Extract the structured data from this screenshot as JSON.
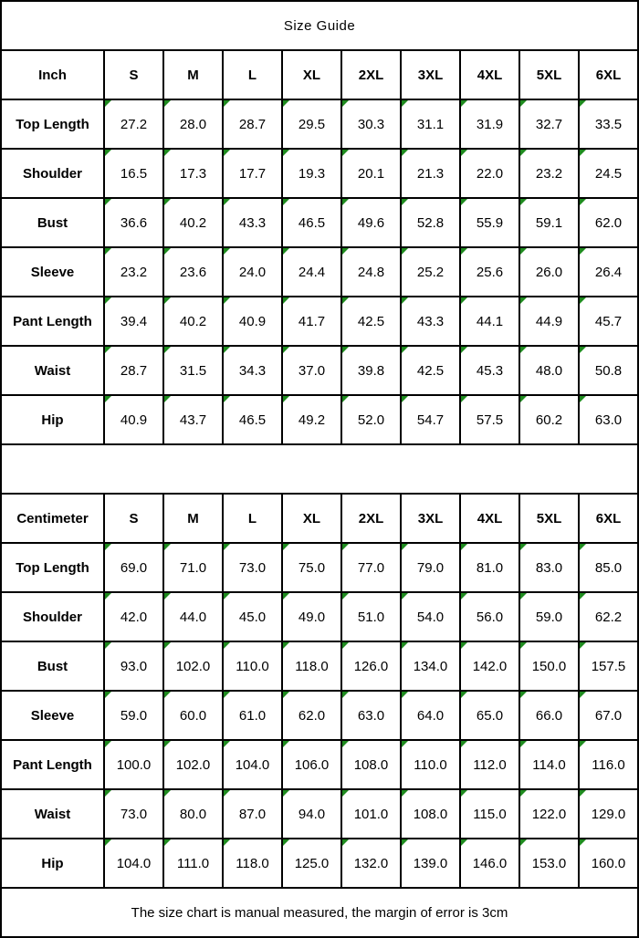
{
  "title": "Size Guide",
  "footer_note": "The size chart is manual measured, the margin of error is 3cm",
  "colors": {
    "border": "#000000",
    "background": "#ffffff",
    "text": "#000000",
    "cell_marker_green": "#1f8b1f"
  },
  "size_columns": [
    "S",
    "M",
    "L",
    "XL",
    "2XL",
    "3XL",
    "4XL",
    "5XL",
    "6XL"
  ],
  "tables": [
    {
      "unit": "Inch",
      "rows": [
        {
          "label": "Top Length",
          "values": [
            "27.2",
            "28.0",
            "28.7",
            "29.5",
            "30.3",
            "31.1",
            "31.9",
            "32.7",
            "33.5"
          ]
        },
        {
          "label": "Shoulder",
          "values": [
            "16.5",
            "17.3",
            "17.7",
            "19.3",
            "20.1",
            "21.3",
            "22.0",
            "23.2",
            "24.5"
          ]
        },
        {
          "label": "Bust",
          "values": [
            "36.6",
            "40.2",
            "43.3",
            "46.5",
            "49.6",
            "52.8",
            "55.9",
            "59.1",
            "62.0"
          ]
        },
        {
          "label": "Sleeve",
          "values": [
            "23.2",
            "23.6",
            "24.0",
            "24.4",
            "24.8",
            "25.2",
            "25.6",
            "26.0",
            "26.4"
          ]
        },
        {
          "label": "Pant Length",
          "values": [
            "39.4",
            "40.2",
            "40.9",
            "41.7",
            "42.5",
            "43.3",
            "44.1",
            "44.9",
            "45.7"
          ]
        },
        {
          "label": "Waist",
          "values": [
            "28.7",
            "31.5",
            "34.3",
            "37.0",
            "39.8",
            "42.5",
            "45.3",
            "48.0",
            "50.8"
          ]
        },
        {
          "label": "Hip",
          "values": [
            "40.9",
            "43.7",
            "46.5",
            "49.2",
            "52.0",
            "54.7",
            "57.5",
            "60.2",
            "63.0"
          ]
        }
      ]
    },
    {
      "unit": "Centimeter",
      "rows": [
        {
          "label": "Top Length",
          "values": [
            "69.0",
            "71.0",
            "73.0",
            "75.0",
            "77.0",
            "79.0",
            "81.0",
            "83.0",
            "85.0"
          ]
        },
        {
          "label": "Shoulder",
          "values": [
            "42.0",
            "44.0",
            "45.0",
            "49.0",
            "51.0",
            "54.0",
            "56.0",
            "59.0",
            "62.2"
          ]
        },
        {
          "label": "Bust",
          "values": [
            "93.0",
            "102.0",
            "110.0",
            "118.0",
            "126.0",
            "134.0",
            "142.0",
            "150.0",
            "157.5"
          ]
        },
        {
          "label": "Sleeve",
          "values": [
            "59.0",
            "60.0",
            "61.0",
            "62.0",
            "63.0",
            "64.0",
            "65.0",
            "66.0",
            "67.0"
          ]
        },
        {
          "label": "Pant Length",
          "values": [
            "100.0",
            "102.0",
            "104.0",
            "106.0",
            "108.0",
            "110.0",
            "112.0",
            "114.0",
            "116.0"
          ]
        },
        {
          "label": "Waist",
          "values": [
            "73.0",
            "80.0",
            "87.0",
            "94.0",
            "101.0",
            "108.0",
            "115.0",
            "122.0",
            "129.0"
          ]
        },
        {
          "label": "Hip",
          "values": [
            "104.0",
            "111.0",
            "118.0",
            "125.0",
            "132.0",
            "139.0",
            "146.0",
            "153.0",
            "160.0"
          ]
        }
      ]
    }
  ]
}
